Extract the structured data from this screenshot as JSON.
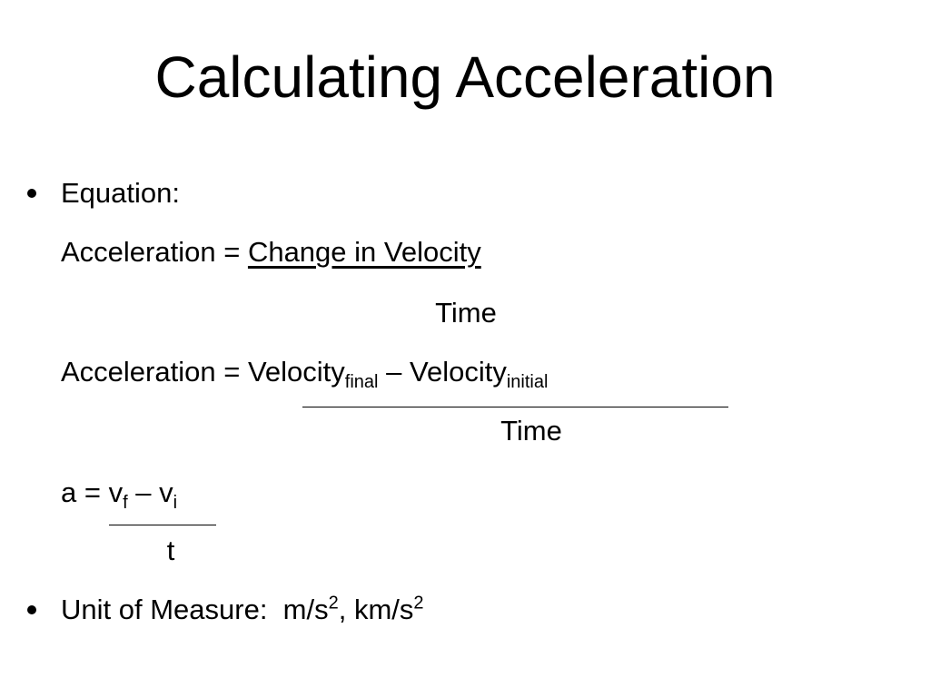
{
  "title": "Calculating Acceleration",
  "equation": {
    "label": "Equation:",
    "word_formula": {
      "lhs": "Acceleration =",
      "numerator": "Change in Velocity",
      "denominator": "Time"
    },
    "velocity_formula": {
      "lhs": "Acceleration =",
      "term1": "Velocity",
      "sub1": "final",
      "operator": "–",
      "term2": "Velocity",
      "sub2": "initial",
      "denominator": "Time"
    },
    "symbol_formula": {
      "lhs": "a =",
      "term1": "v",
      "sub1": "f",
      "operator": "–",
      "term2": "v",
      "sub2": "i",
      "denominator": "t"
    }
  },
  "units": {
    "label": "Unit of Measure:",
    "unit1": "m/s",
    "exp1": "2",
    "separator": ",",
    "unit2": "km/s",
    "exp2": "2"
  }
}
